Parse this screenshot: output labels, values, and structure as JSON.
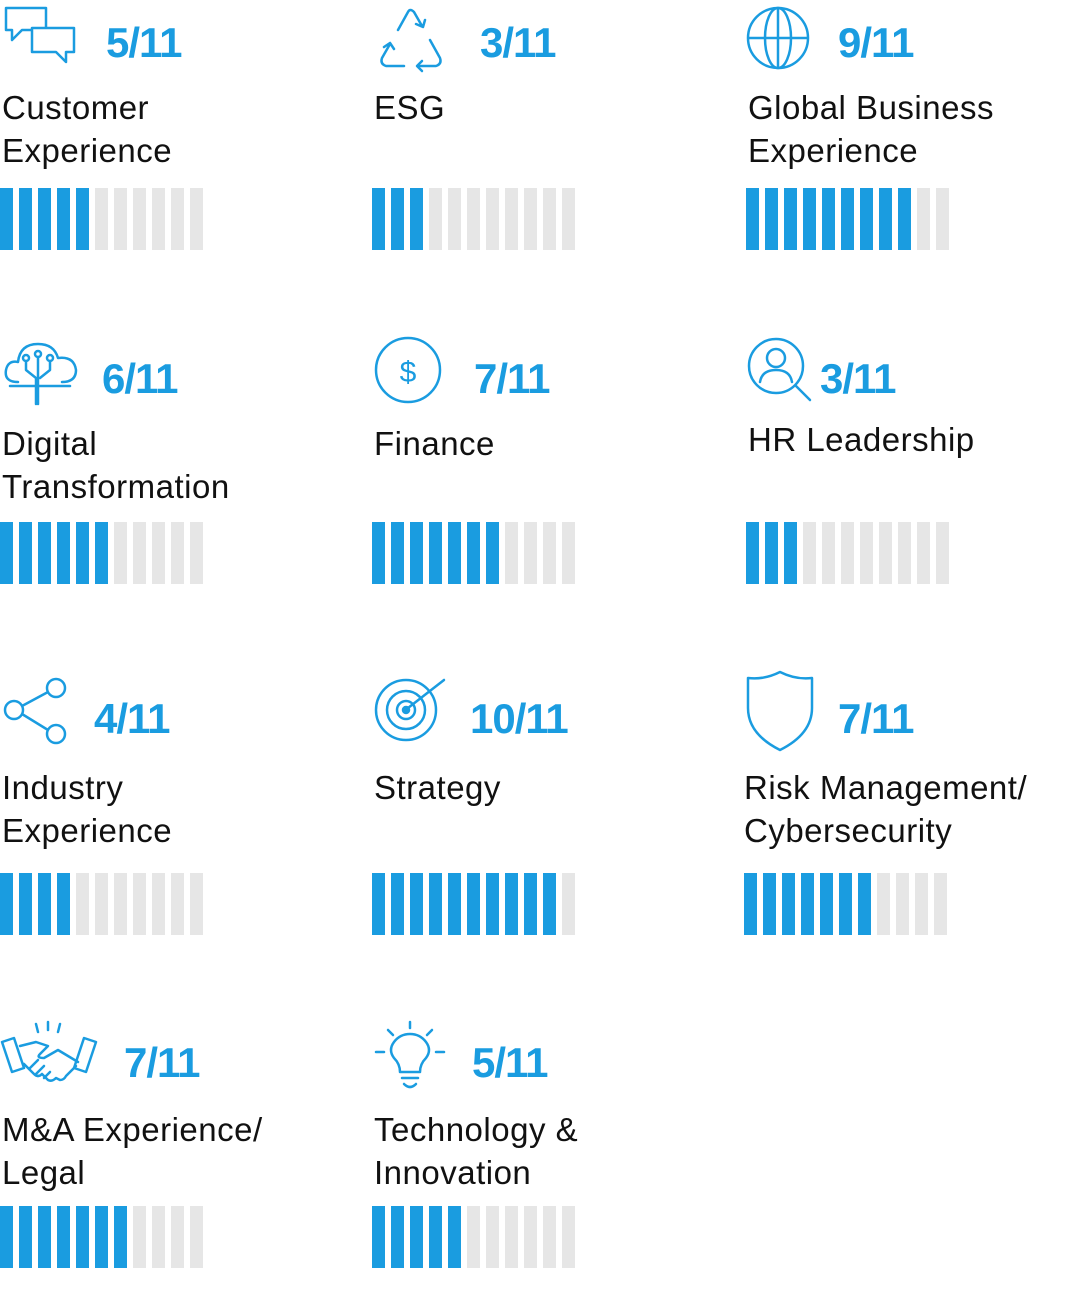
{
  "total": 11,
  "accent_color": "#1a9ce0",
  "empty_color": "#e6e6e6",
  "skills": [
    {
      "icon": "chat-bubbles-icon",
      "score": "5/11",
      "value": 5,
      "label_lines": [
        "Customer",
        "Experience"
      ]
    },
    {
      "icon": "recycle-icon",
      "score": "3/11",
      "value": 3,
      "label_lines": [
        "ESG",
        ""
      ]
    },
    {
      "icon": "globe-icon",
      "score": "9/11",
      "value": 9,
      "label_lines": [
        "Global Business",
        "Experience"
      ]
    },
    {
      "icon": "cloud-circuit-icon",
      "score": "6/11",
      "value": 6,
      "label_lines": [
        "Digital",
        "Transformation"
      ]
    },
    {
      "icon": "dollar-coin-icon",
      "score": "7/11",
      "value": 7,
      "label_lines": [
        "Finance",
        ""
      ]
    },
    {
      "icon": "person-search-icon",
      "score": "3/11",
      "value": 3,
      "label_lines": [
        "HR Leadership",
        ""
      ]
    },
    {
      "icon": "share-icon",
      "score": "4/11",
      "value": 4,
      "label_lines": [
        "Industry",
        "Experience"
      ]
    },
    {
      "icon": "target-icon",
      "score": "10/11",
      "value": 10,
      "label_lines": [
        "Strategy",
        ""
      ]
    },
    {
      "icon": "shield-icon",
      "score": "7/11",
      "value": 7,
      "label_lines": [
        "Risk Management/",
        "Cybersecurity"
      ]
    },
    {
      "icon": "handshake-icon",
      "score": "7/11",
      "value": 7,
      "label_lines": [
        "M&A Experience/",
        "Legal"
      ]
    },
    {
      "icon": "lightbulb-icon",
      "score": "5/11",
      "value": 5,
      "label_lines": [
        "Technology &",
        "Innovation"
      ]
    }
  ]
}
